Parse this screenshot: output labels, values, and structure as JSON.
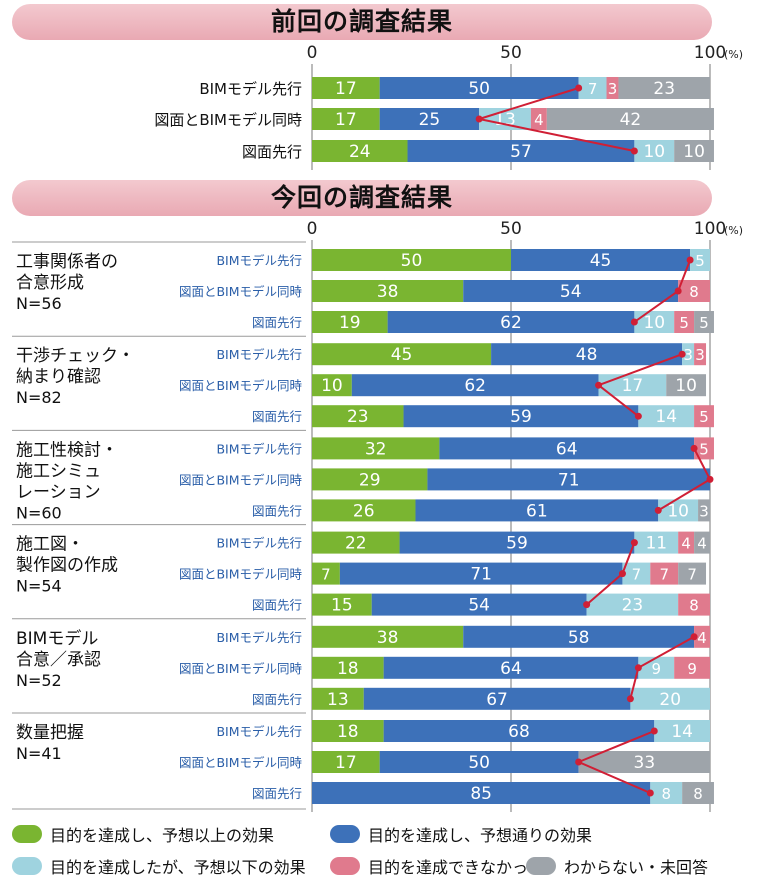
{
  "unit": "(%)",
  "axis_ticks": [
    "0",
    "50",
    "100"
  ],
  "colors": {
    "green": "#7ab531",
    "blue": "#3d71b9",
    "lightblue": "#9fd3df",
    "pink": "#e07a8d",
    "gray": "#9ea4aa",
    "line": "#d01f35",
    "banner": "#eeb7bf"
  },
  "legend": [
    {
      "label": "目的を達成し、予想以上の効果",
      "color": "#7ab531"
    },
    {
      "label": "目的を達成し、予想通りの効果",
      "color": "#3d71b9"
    },
    {
      "label": "目的を達成したが、予想以下の効果",
      "color": "#9fd3df"
    },
    {
      "label": "目的を達成できなかった",
      "color": "#e07a8d"
    },
    {
      "label": "わからない・未回答",
      "color": "#9ea4aa"
    }
  ],
  "chart_data": [
    {
      "type": "bar",
      "stacked": true,
      "orientation": "horizontal",
      "title": "前回の調査結果",
      "xlim": [
        0,
        100
      ],
      "unit": "(%)",
      "categories": [
        "BIMモデル先行",
        "図面とBIMモデル同時",
        "図面先行"
      ],
      "series": [
        {
          "name": "目的を達成し、予想以上の効果",
          "values": [
            17,
            17,
            24
          ]
        },
        {
          "name": "目的を達成し、予想通りの効果",
          "values": [
            50,
            25,
            57
          ]
        },
        {
          "name": "目的を達成したが、予想以下の効果",
          "values": [
            7,
            13,
            10
          ]
        },
        {
          "name": "目的を達成できなかった",
          "values": [
            3,
            4,
            0
          ]
        },
        {
          "name": "わからない・未回答",
          "values": [
            23,
            42,
            10
          ]
        }
      ]
    },
    {
      "type": "bar",
      "stacked": true,
      "orientation": "horizontal",
      "title": "今回の調査結果",
      "xlim": [
        0,
        100
      ],
      "unit": "(%)",
      "groups": [
        {
          "name": "工事関係者の合意形成",
          "name_lines": [
            "工事関係者の",
            "合意形成"
          ],
          "n": "N=56",
          "categories": [
            "BIMモデル先行",
            "図面とBIMモデル同時",
            "図面先行"
          ],
          "series": [
            {
              "name": "目的を達成し、予想以上の効果",
              "values": [
                50,
                38,
                19
              ]
            },
            {
              "name": "目的を達成し、予想通りの効果",
              "values": [
                45,
                54,
                62
              ]
            },
            {
              "name": "目的を達成したが、予想以下の効果",
              "values": [
                5,
                0,
                10
              ]
            },
            {
              "name": "目的を達成できなかった",
              "values": [
                0,
                8,
                5
              ]
            },
            {
              "name": "わからない・未回答",
              "values": [
                0,
                0,
                5
              ]
            }
          ]
        },
        {
          "name": "干渉チェック・納まり確認",
          "name_lines": [
            "干渉チェック・",
            "納まり確認"
          ],
          "n": "N=82",
          "categories": [
            "BIMモデル先行",
            "図面とBIMモデル同時",
            "図面先行"
          ],
          "series": [
            {
              "name": "目的を達成し、予想以上の効果",
              "values": [
                45,
                10,
                23
              ]
            },
            {
              "name": "目的を達成し、予想通りの効果",
              "values": [
                48,
                62,
                59
              ]
            },
            {
              "name": "目的を達成したが、予想以下の効果",
              "values": [
                3,
                17,
                14
              ]
            },
            {
              "name": "目的を達成できなかった",
              "values": [
                3,
                0,
                5
              ]
            },
            {
              "name": "わからない・未回答",
              "values": [
                0,
                10,
                0
              ]
            }
          ]
        },
        {
          "name": "施工性検討・施工シミュレーション",
          "name_lines": [
            "施工性検討・",
            "施工シミュ",
            "レーション"
          ],
          "n": "N=60",
          "categories": [
            "BIMモデル先行",
            "図面とBIMモデル同時",
            "図面先行"
          ],
          "series": [
            {
              "name": "目的を達成し、予想以上の効果",
              "values": [
                32,
                29,
                26
              ]
            },
            {
              "name": "目的を達成し、予想通りの効果",
              "values": [
                64,
                71,
                61
              ]
            },
            {
              "name": "目的を達成したが、予想以下の効果",
              "values": [
                0,
                0,
                10
              ]
            },
            {
              "name": "目的を達成できなかった",
              "values": [
                5,
                0,
                0
              ]
            },
            {
              "name": "わからない・未回答",
              "values": [
                0,
                0,
                3
              ]
            }
          ]
        },
        {
          "name": "施工図・製作図の作成",
          "name_lines": [
            "施工図・",
            "製作図の作成"
          ],
          "n": "N=54",
          "categories": [
            "BIMモデル先行",
            "図面とBIMモデル同時",
            "図面先行"
          ],
          "series": [
            {
              "name": "目的を達成し、予想以上の効果",
              "values": [
                22,
                7,
                15
              ]
            },
            {
              "name": "目的を達成し、予想通りの効果",
              "values": [
                59,
                71,
                54
              ]
            },
            {
              "name": "目的を達成したが、予想以下の効果",
              "values": [
                11,
                7,
                23
              ]
            },
            {
              "name": "目的を達成できなかった",
              "values": [
                4,
                7,
                8
              ]
            },
            {
              "name": "わからない・未回答",
              "values": [
                4,
                7,
                0
              ]
            }
          ]
        },
        {
          "name": "BIMモデル合意／承認",
          "name_lines": [
            "BIMモデル",
            "合意／承認"
          ],
          "n": "N=52",
          "categories": [
            "BIMモデル先行",
            "図面とBIMモデル同時",
            "図面先行"
          ],
          "series": [
            {
              "name": "目的を達成し、予想以上の効果",
              "values": [
                38,
                18,
                13
              ]
            },
            {
              "name": "目的を達成し、予想通りの効果",
              "values": [
                58,
                64,
                67
              ]
            },
            {
              "name": "目的を達成したが、予想以下の効果",
              "values": [
                0,
                9,
                20
              ]
            },
            {
              "name": "目的を達成できなかった",
              "values": [
                4,
                9,
                0
              ]
            },
            {
              "name": "わからない・未回答",
              "values": [
                0,
                0,
                0
              ]
            }
          ]
        },
        {
          "name": "数量把握",
          "name_lines": [
            "数量把握"
          ],
          "n": "N=41",
          "categories": [
            "BIMモデル先行",
            "図面とBIMモデル同時",
            "図面先行"
          ],
          "series": [
            {
              "name": "目的を達成し、予想以上の効果",
              "values": [
                18,
                17,
                0
              ]
            },
            {
              "name": "目的を達成し、予想通りの効果",
              "values": [
                68,
                50,
                85
              ]
            },
            {
              "name": "目的を達成したが、予想以下の効果",
              "values": [
                14,
                0,
                8
              ]
            },
            {
              "name": "目的を達成できなかった",
              "values": [
                0,
                0,
                0
              ]
            },
            {
              "name": "わからない・未回答",
              "values": [
                0,
                33,
                8
              ]
            }
          ]
        }
      ]
    }
  ]
}
